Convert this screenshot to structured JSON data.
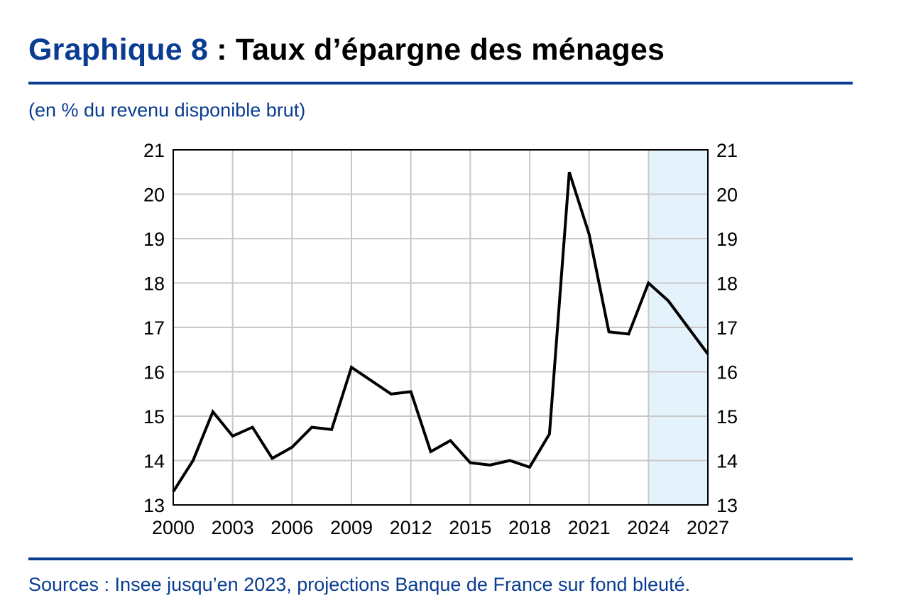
{
  "header": {
    "title_number": "Graphique 8",
    "title_text": " : Taux d’épargne des ménages",
    "subtitle": "(en % du revenu disponible brut)"
  },
  "footer": {
    "source": "Sources : Insee jusqu’en 2023, projections Banque de France sur fond bleuté."
  },
  "colors": {
    "brand": "#0a3d91",
    "line": "#000000",
    "grid": "#c8c8c8",
    "projection_band": "#e4f3fb"
  },
  "chart_data": {
    "type": "line",
    "title": "",
    "xlabel": "",
    "ylabel": "",
    "xlim": [
      2000,
      2027
    ],
    "ylim": [
      13,
      21
    ],
    "grid": true,
    "x_ticks": [
      "2000",
      "2003",
      "2006",
      "2009",
      "2012",
      "2015",
      "2018",
      "2021",
      "2024",
      "2027"
    ],
    "y_ticks_left": [
      "13",
      "14",
      "15",
      "16",
      "17",
      "18",
      "19",
      "20",
      "21"
    ],
    "y_ticks_right": [
      "13",
      "14",
      "15",
      "16",
      "17",
      "18",
      "19",
      "20",
      "21"
    ],
    "projection_range": [
      2024,
      2027
    ],
    "series": [
      {
        "x": [
          2000,
          2001,
          2002,
          2003,
          2004,
          2005,
          2006,
          2007,
          2008,
          2009,
          2010,
          2011,
          2012,
          2013,
          2014,
          2015,
          2016,
          2017,
          2018,
          2019,
          2020,
          2021,
          2022,
          2023,
          2024,
          2025,
          2026,
          2027
        ],
        "values": [
          13.3,
          14.0,
          15.1,
          14.55,
          14.75,
          14.05,
          14.3,
          14.75,
          14.7,
          16.1,
          15.8,
          15.5,
          15.55,
          14.2,
          14.45,
          13.95,
          13.9,
          14.0,
          13.85,
          14.6,
          20.5,
          19.1,
          16.9,
          16.85,
          18.0,
          17.6,
          17.0,
          16.4
        ]
      }
    ]
  }
}
